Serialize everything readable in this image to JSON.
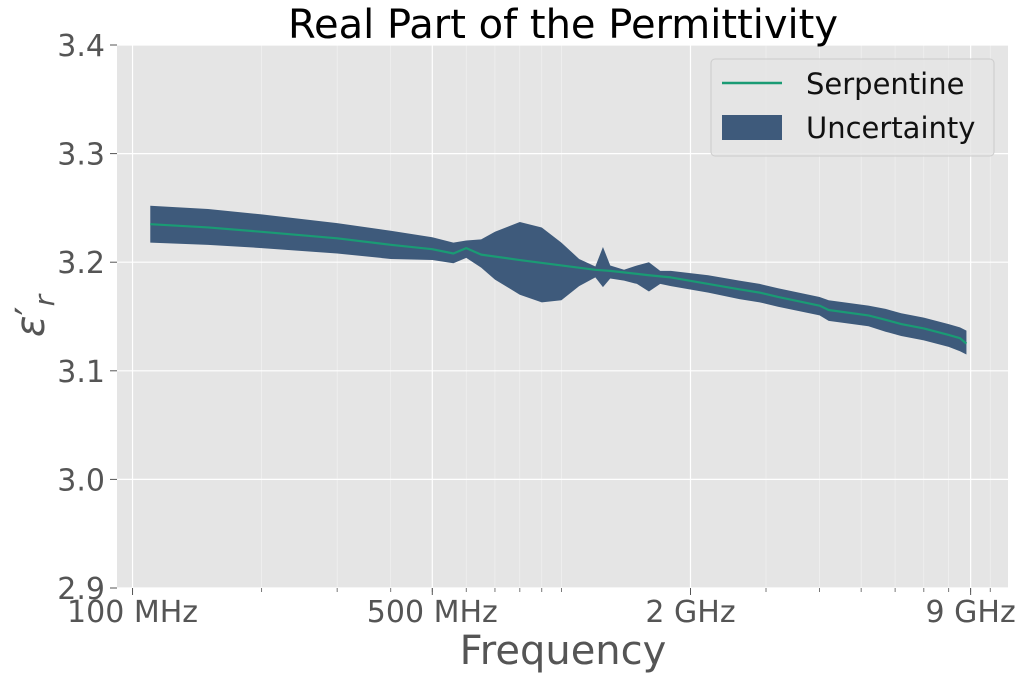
{
  "chart_data": {
    "type": "line",
    "title": "Real Part of the Permittivity",
    "xlabel": "Frequency",
    "ylabel": "ε′r",
    "x_scale": "log",
    "xlim": [
      92000000,
      11000000000
    ],
    "ylim": [
      2.9,
      3.4
    ],
    "grid": true,
    "legend_position": "top-right",
    "x_ticks": [
      {
        "value": 100000000,
        "label": "100 MHz"
      },
      {
        "value": 500000000,
        "label": "500 MHz"
      },
      {
        "value": 2000000000,
        "label": "2 GHz"
      },
      {
        "value": 9000000000,
        "label": "9 GHz"
      }
    ],
    "y_ticks": [
      {
        "value": 2.9,
        "label": "2.9"
      },
      {
        "value": 3.0,
        "label": "3.0"
      },
      {
        "value": 3.1,
        "label": "3.1"
      },
      {
        "value": 3.2,
        "label": "3.2"
      },
      {
        "value": 3.3,
        "label": "3.3"
      },
      {
        "value": 3.4,
        "label": "3.4"
      }
    ],
    "series": [
      {
        "name": "Serpentine",
        "kind": "line",
        "color": "#1a9b74",
        "x": [
          110000000,
          150000000,
          200000000,
          300000000,
          400000000,
          500000000,
          560000000,
          600000000,
          650000000,
          800000000,
          1000000000,
          1200000000,
          1300000000,
          1600000000,
          1800000000,
          2200000000,
          2600000000,
          2900000000,
          3200000000,
          4000000000,
          4200000000,
          5200000000,
          5700000000,
          6200000000,
          7000000000,
          8000000000,
          8500000000,
          8800000000
        ],
        "y": [
          3.235,
          3.232,
          3.228,
          3.222,
          3.216,
          3.212,
          3.208,
          3.213,
          3.207,
          3.202,
          3.197,
          3.193,
          3.192,
          3.188,
          3.186,
          3.18,
          3.175,
          3.172,
          3.168,
          3.16,
          3.156,
          3.151,
          3.147,
          3.143,
          3.139,
          3.133,
          3.13,
          3.125
        ]
      },
      {
        "name": "Uncertainty",
        "kind": "band",
        "color": "#3e5a7b",
        "x": [
          110000000,
          150000000,
          200000000,
          300000000,
          400000000,
          500000000,
          560000000,
          600000000,
          650000000,
          700000000,
          800000000,
          900000000,
          1000000000,
          1100000000,
          1200000000,
          1250000000,
          1300000000,
          1400000000,
          1500000000,
          1600000000,
          1700000000,
          1800000000,
          2200000000,
          2600000000,
          2900000000,
          3200000000,
          4000000000,
          4200000000,
          5200000000,
          5700000000,
          6200000000,
          7000000000,
          8000000000,
          8500000000,
          8800000000
        ],
        "lower": [
          3.218,
          3.216,
          3.213,
          3.208,
          3.203,
          3.202,
          3.199,
          3.204,
          3.195,
          3.184,
          3.17,
          3.163,
          3.165,
          3.178,
          3.186,
          3.177,
          3.185,
          3.183,
          3.18,
          3.173,
          3.18,
          3.178,
          3.172,
          3.166,
          3.163,
          3.159,
          3.151,
          3.146,
          3.141,
          3.136,
          3.132,
          3.128,
          3.122,
          3.118,
          3.115
        ],
        "upper": [
          3.252,
          3.249,
          3.244,
          3.236,
          3.229,
          3.223,
          3.218,
          3.22,
          3.221,
          3.228,
          3.237,
          3.232,
          3.218,
          3.203,
          3.196,
          3.214,
          3.197,
          3.193,
          3.197,
          3.2,
          3.192,
          3.192,
          3.188,
          3.183,
          3.18,
          3.176,
          3.168,
          3.165,
          3.16,
          3.157,
          3.153,
          3.149,
          3.143,
          3.14,
          3.137
        ]
      }
    ]
  }
}
